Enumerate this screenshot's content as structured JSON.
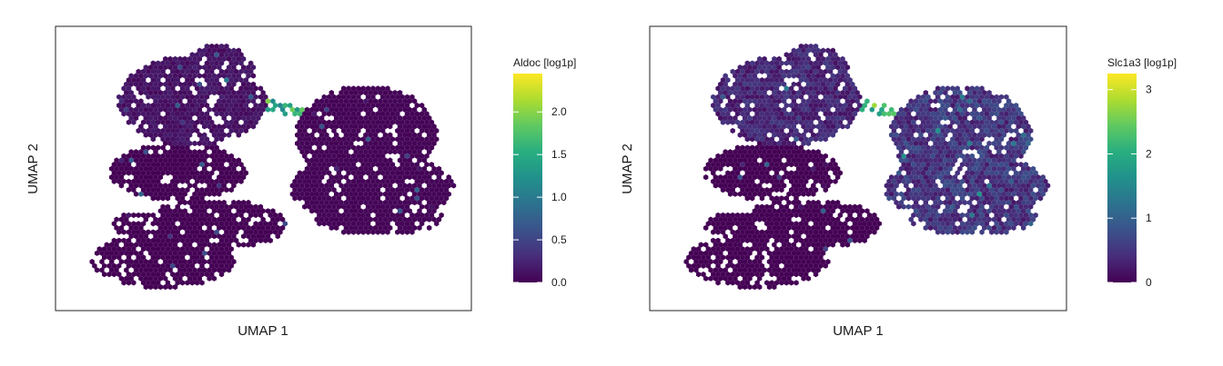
{
  "chart_data": [
    {
      "type": "heatmap",
      "subtype": "hexbin-embedding",
      "xlabel": "UMAP 1",
      "ylabel": "UMAP 2",
      "colorbar": {
        "title": "Aldoc [log1p]",
        "colormap": "viridis",
        "range": [
          0,
          2.45
        ],
        "ticks": [
          0.0,
          0.5,
          1.0,
          1.5,
          2.0
        ],
        "tick_labels": [
          "0.0",
          "0.5",
          "1.0",
          "1.5",
          "2.0"
        ]
      },
      "clusters": [
        {
          "name": "upper-left lobe",
          "level": 0.12
        },
        {
          "name": "middle-left lobe",
          "level": 0.0
        },
        {
          "name": "lower-left lobe",
          "level": 0.0
        },
        {
          "name": "bottom-left lobe",
          "level": 0.0
        },
        {
          "name": "right lobe",
          "level": 0.02
        },
        {
          "name": "bridge",
          "level": 1.8
        }
      ]
    },
    {
      "type": "heatmap",
      "subtype": "hexbin-embedding",
      "xlabel": "UMAP 1",
      "ylabel": "UMAP 2",
      "colorbar": {
        "title": "Slc1a3 [log1p]",
        "colormap": "viridis",
        "range": [
          0,
          3.25
        ],
        "ticks": [
          0,
          1,
          2,
          3
        ],
        "tick_labels": [
          "0",
          "1",
          "2",
          "3"
        ]
      },
      "clusters": [
        {
          "name": "upper-left lobe",
          "level": 0.35
        },
        {
          "name": "middle-left lobe",
          "level": 0.0
        },
        {
          "name": "lower-left lobe",
          "level": 0.0
        },
        {
          "name": "bottom-left lobe",
          "level": 0.0
        },
        {
          "name": "right lobe",
          "level": 0.5
        },
        {
          "name": "bridge",
          "level": 2.6
        }
      ]
    }
  ]
}
